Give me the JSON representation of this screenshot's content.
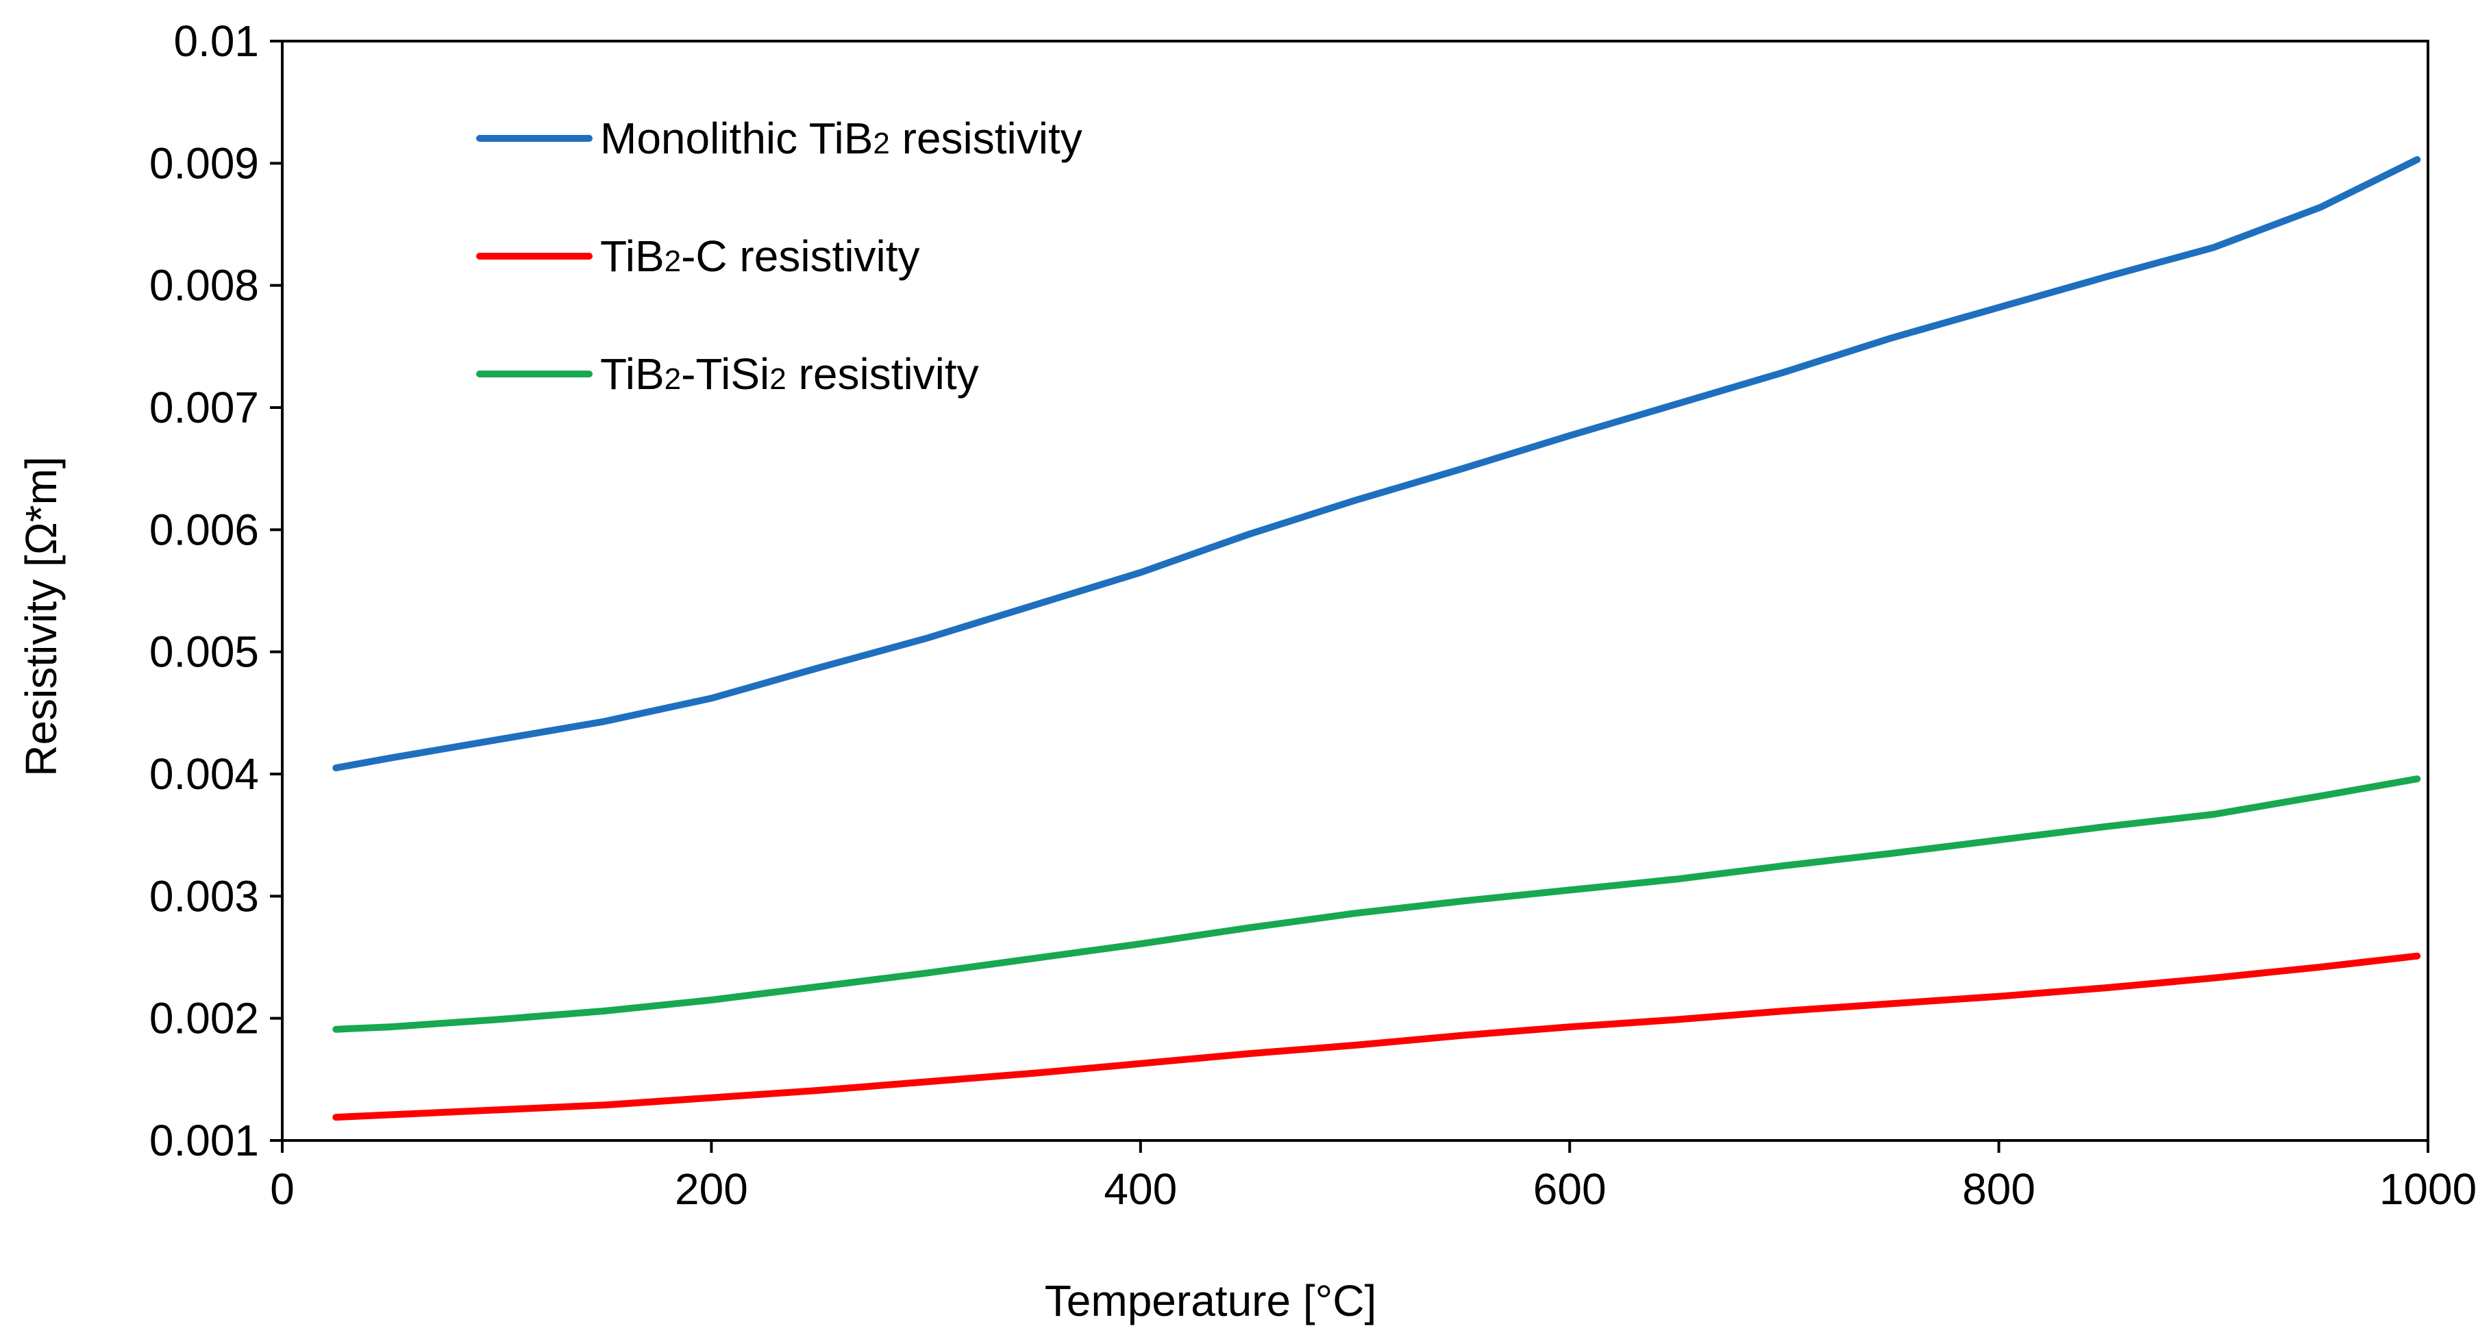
{
  "chart_data": {
    "type": "line",
    "title": "",
    "xlabel": "Temperature [°C]",
    "ylabel": "Resistivity [Ω*m]",
    "xlim": [
      0,
      1000
    ],
    "ylim": [
      0.001,
      0.01
    ],
    "x_ticks": [
      "0",
      "200",
      "400",
      "600",
      "800",
      "1000"
    ],
    "y_ticks": [
      "0.001",
      "0.002",
      "0.003",
      "0.004",
      "0.005",
      "0.006",
      "0.007",
      "0.008",
      "0.009",
      "0.01"
    ],
    "grid": false,
    "legend_position": "top-left",
    "x": [
      25,
      50,
      100,
      150,
      200,
      250,
      300,
      350,
      400,
      450,
      500,
      550,
      600,
      650,
      700,
      750,
      800,
      850,
      900,
      950,
      995
    ],
    "series": [
      {
        "name": "Monolithic TiB2 resistivity",
        "legend_main": "Monolithic TiB",
        "legend_sub": "2",
        "legend_rest": " resistivity",
        "color": "#1f6fbf",
        "values": [
          0.00405,
          0.00413,
          0.00428,
          0.00443,
          0.00462,
          0.00487,
          0.00511,
          0.00538,
          0.00565,
          0.00596,
          0.00624,
          0.0065,
          0.00677,
          0.00703,
          0.00729,
          0.00757,
          0.00782,
          0.00807,
          0.00831,
          0.00864,
          0.00903
        ]
      },
      {
        "name": "TiB2-C resistivity",
        "legend_main": "TiB",
        "legend_sub": "2",
        "legend_rest": "-C resistivity",
        "color": "#ff0000",
        "values": [
          0.00119,
          0.00121,
          0.00125,
          0.00129,
          0.00135,
          0.00141,
          0.00148,
          0.00155,
          0.00163,
          0.00171,
          0.00178,
          0.00186,
          0.00193,
          0.00199,
          0.00206,
          0.00212,
          0.00218,
          0.00225,
          0.00233,
          0.00242,
          0.00251
        ]
      },
      {
        "name": "TiB2-TiSi2 resistivity",
        "legend_main": "TiB",
        "legend_sub": "2",
        "legend_rest": "-TiSi",
        "legend_sub2": "2",
        "legend_rest2": " resistivity",
        "color": "#18a84f",
        "values": [
          0.00191,
          0.00193,
          0.00199,
          0.00206,
          0.00215,
          0.00226,
          0.00237,
          0.00249,
          0.00261,
          0.00274,
          0.00286,
          0.00296,
          0.00305,
          0.00314,
          0.00325,
          0.00335,
          0.00346,
          0.00357,
          0.00367,
          0.00382,
          0.00396
        ]
      }
    ]
  }
}
